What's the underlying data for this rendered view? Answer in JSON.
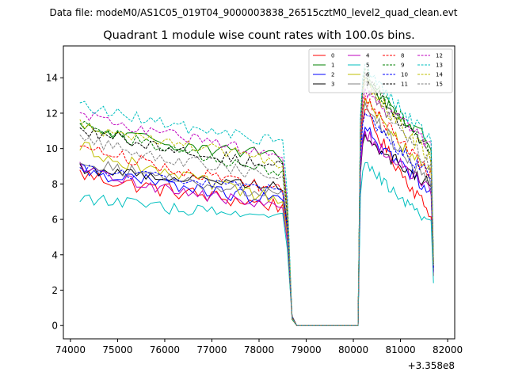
{
  "chart_data": {
    "type": "line",
    "suptitle": "Data file: modeM0/AS1C05_019T04_9000003838_26515cztM0_level2_quad_clean.evt",
    "title": "Quadrant 1 module wise count rates with 100.0s bins.",
    "xlabel": "",
    "ylabel": "",
    "x_offset_label": "+3.358e8",
    "xlim": [
      73850,
      82150
    ],
    "ylim": [
      -0.75,
      15.8
    ],
    "x_ticks": [
      74000,
      75000,
      76000,
      77000,
      78000,
      79000,
      80000,
      81000,
      82000
    ],
    "x_tick_labels": [
      "74000",
      "75000",
      "76000",
      "77000",
      "78000",
      "79000",
      "80000",
      "81000",
      "82000"
    ],
    "y_ticks": [
      0,
      2,
      4,
      6,
      8,
      10,
      12,
      14
    ],
    "y_tick_labels": [
      "0",
      "2",
      "4",
      "6",
      "8",
      "10",
      "12",
      "14"
    ],
    "legend_position": "top-right",
    "segments": {
      "seg1": {
        "x_start": 74200,
        "x_end": 78600,
        "step": 100
      },
      "gap": {
        "x": [
          78700,
          78800,
          78900,
          79000,
          79100,
          79200,
          79300,
          79400,
          79500,
          79600,
          79700,
          79800,
          79900,
          80000,
          80100
        ],
        "value": 0.0
      },
      "seg2": {
        "x_start": 80100,
        "x_end": 81650,
        "step": 50
      }
    },
    "series": [
      {
        "name": "0",
        "color": "#ff0000",
        "dash": "solid",
        "seg1": {
          "start": 8.6,
          "end": 6.7,
          "noise": 0.45
        },
        "seg2": {
          "peak": 12.2,
          "end": 6.3
        },
        "final": 2.8
      },
      {
        "name": "1",
        "color": "#008000",
        "dash": "solid",
        "seg1": {
          "start": 11.2,
          "end": 9.5,
          "noise": 0.4
        },
        "seg2": {
          "peak": 14.0,
          "end": 10.3
        },
        "final": 3.5
      },
      {
        "name": "2",
        "color": "#0000ff",
        "dash": "solid",
        "seg1": {
          "start": 8.9,
          "end": 7.0,
          "noise": 0.4
        },
        "seg2": {
          "peak": 11.2,
          "end": 7.6
        },
        "final": 3.0
      },
      {
        "name": "3",
        "color": "#000000",
        "dash": "solid",
        "seg1": {
          "start": 8.9,
          "end": 7.9,
          "noise": 0.3
        },
        "seg2": {
          "peak": 10.8,
          "end": 7.9
        },
        "final": 3.1
      },
      {
        "name": "4",
        "color": "#bf00bf",
        "dash": "solid",
        "seg1": {
          "start": 8.9,
          "end": 6.6,
          "noise": 0.35
        },
        "seg2": {
          "peak": 11.0,
          "end": 7.7
        },
        "final": 3.0
      },
      {
        "name": "5",
        "color": "#00bfbf",
        "dash": "solid",
        "seg1": {
          "start": 7.3,
          "end": 6.0,
          "noise": 0.35
        },
        "seg2": {
          "peak": 9.2,
          "end": 5.7
        },
        "final": 2.4
      },
      {
        "name": "6",
        "color": "#bfbf00",
        "dash": "solid",
        "seg1": {
          "start": 10.2,
          "end": 7.0,
          "noise": 0.4
        },
        "seg2": {
          "peak": 12.8,
          "end": 8.6
        },
        "final": 3.3
      },
      {
        "name": "7",
        "color": "#808080",
        "dash": "solid",
        "seg1": {
          "start": 9.4,
          "end": 7.3,
          "noise": 0.35
        },
        "seg2": {
          "peak": 12.6,
          "end": 8.0
        },
        "final": 3.2
      },
      {
        "name": "8",
        "color": "#ff0000",
        "dash": "dashed",
        "seg1": {
          "start": 10.3,
          "end": 7.6,
          "noise": 0.35
        },
        "seg2": {
          "peak": 13.0,
          "end": 8.6
        },
        "final": 3.3
      },
      {
        "name": "9",
        "color": "#008000",
        "dash": "dashed",
        "seg1": {
          "start": 11.5,
          "end": 8.5,
          "noise": 0.35
        },
        "seg2": {
          "peak": 14.5,
          "end": 9.8
        },
        "final": 3.6
      },
      {
        "name": "10",
        "color": "#0000ff",
        "dash": "dashed",
        "seg1": {
          "start": 9.0,
          "end": 7.6,
          "noise": 0.3
        },
        "seg2": {
          "peak": 12.0,
          "end": 8.4
        },
        "final": 3.2
      },
      {
        "name": "11",
        "color": "#000000",
        "dash": "dashed",
        "seg1": {
          "start": 11.2,
          "end": 8.9,
          "noise": 0.35
        },
        "seg2": {
          "peak": 14.3,
          "end": 9.6
        },
        "final": 3.5
      },
      {
        "name": "12",
        "color": "#bf00bf",
        "dash": "dashed",
        "seg1": {
          "start": 12.0,
          "end": 9.6,
          "noise": 0.35
        },
        "seg2": {
          "peak": 13.4,
          "end": 10.2
        },
        "final": 3.6
      },
      {
        "name": "13",
        "color": "#00bfbf",
        "dash": "dashed",
        "seg1": {
          "start": 12.5,
          "end": 10.3,
          "noise": 0.35
        },
        "seg2": {
          "peak": 14.8,
          "end": 10.5
        },
        "final": 3.8
      },
      {
        "name": "14",
        "color": "#bfbf00",
        "dash": "dashed",
        "seg1": {
          "start": 11.5,
          "end": 9.2,
          "noise": 0.4
        },
        "seg2": {
          "peak": 14.0,
          "end": 9.4
        },
        "final": 3.5
      },
      {
        "name": "15",
        "color": "#808080",
        "dash": "dashed",
        "seg1": {
          "start": 10.6,
          "end": 8.3,
          "noise": 0.35
        },
        "seg2": {
          "peak": 13.8,
          "end": 9.0
        },
        "final": 3.4
      }
    ]
  }
}
